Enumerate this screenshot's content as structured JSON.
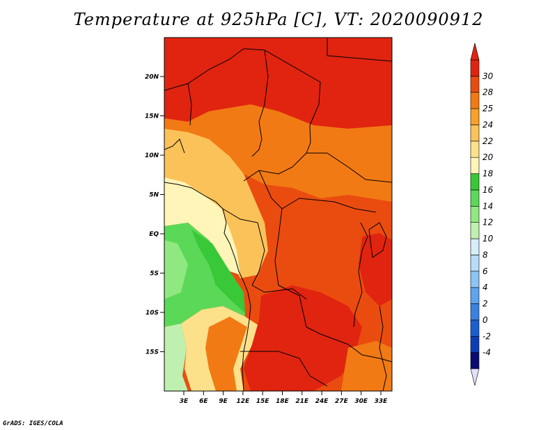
{
  "title": "Temperature at 925hPa [C], VT: 2020090912",
  "credit": "GrADS: IGES/COLA",
  "map": {
    "lat_ticks": [
      "20N",
      "15N",
      "10N",
      "5N",
      "EQ",
      "5S",
      "10S",
      "15S"
    ],
    "lon_ticks": [
      "3E",
      "6E",
      "9E",
      "12E",
      "15E",
      "18E",
      "21E",
      "24E",
      "27E",
      "30E",
      "33E"
    ]
  },
  "colorbar": {
    "levels": [
      "-4",
      "-2",
      "0",
      "2",
      "4",
      "6",
      "8",
      "10",
      "12",
      "14",
      "16",
      "18",
      "20",
      "22",
      "24",
      "25",
      "28",
      "30"
    ],
    "colors": [
      "#0a0a70",
      "#0c3fb5",
      "#1a5fd0",
      "#3a82e0",
      "#5ea4ee",
      "#8cc4f4",
      "#b6dcf8",
      "#d6eefa",
      "#c0f0b0",
      "#90e880",
      "#5cd858",
      "#38c838",
      "#fff5b8",
      "#fde18a",
      "#fbc25a",
      "#f8a028",
      "#f27a14",
      "#ea4c10",
      "#e02410"
    ],
    "under_color": "#e0e0f8",
    "over_color": "#e02410"
  },
  "field_colors": {
    "c30": "#e02410",
    "c28": "#ea4c10",
    "c25": "#f27a14",
    "c24": "#f8a028",
    "c22": "#fbc25a",
    "c20": "#fde18a",
    "c18": "#fff5b8",
    "c16": "#38c838",
    "c14": "#5cd858",
    "c12": "#90e880",
    "c10": "#c0f0b0"
  }
}
